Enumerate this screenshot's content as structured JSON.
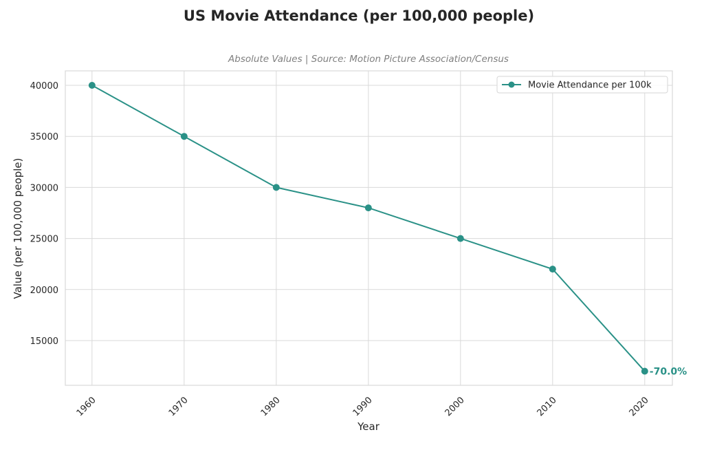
{
  "chart_data": {
    "type": "line",
    "title": "US Movie Attendance (per 100,000 people)",
    "subtitle": "Absolute Values | Source: Motion Picture Association/Census",
    "xlabel": "Year",
    "ylabel": "Value (per 100,000 people)",
    "x": [
      1960,
      1970,
      1980,
      1990,
      2000,
      2010,
      2020
    ],
    "series": [
      {
        "name": "Movie Attendance per 100k",
        "values": [
          40000,
          35000,
          30000,
          28000,
          25000,
          22000,
          12000
        ],
        "color": "#2a9187"
      }
    ],
    "xticks": [
      "1960",
      "1970",
      "1980",
      "1990",
      "2000",
      "2010",
      "2020"
    ],
    "yticks": [
      "15000",
      "20000",
      "25000",
      "30000",
      "35000",
      "40000"
    ],
    "ytick_values": [
      15000,
      20000,
      25000,
      30000,
      35000,
      40000
    ],
    "xlim": [
      1957.1,
      2023
    ],
    "ylim": [
      10620,
      41415
    ],
    "grid": true,
    "legend": "top-right",
    "annotations": [
      {
        "x": 2020,
        "y": 12000,
        "text": "-70.0%",
        "color": "#2a9187"
      }
    ]
  }
}
